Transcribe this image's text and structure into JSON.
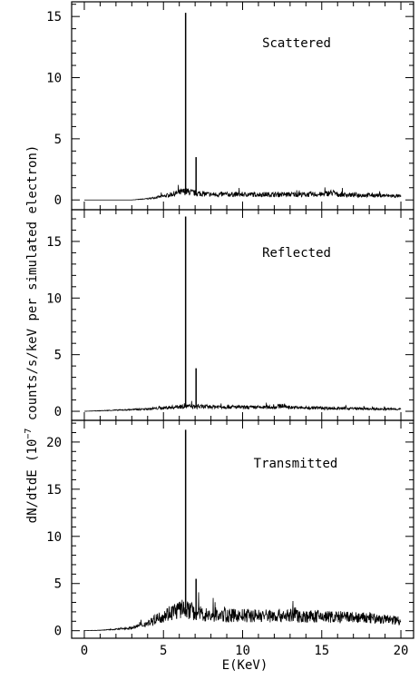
{
  "chart_data": {
    "type": "line",
    "xlabel": "E(KeV)",
    "ylabel_main": "dN/dtdE (10",
    "ylabel_exp": "−7",
    "ylabel_rest": " counts/s/keV per simulated electron)",
    "xlim": [
      -0.8,
      20.8
    ],
    "xticks": [
      0,
      5,
      10,
      15,
      20
    ],
    "panels": [
      {
        "label": "Scattered",
        "ylim": [
          -0.8,
          16.2
        ],
        "yticks": [
          0,
          5,
          10,
          15
        ],
        "series": [
          {
            "x": [
              0,
              1,
              2,
              3,
              3.5,
              4,
              4.5,
              5,
              5.5,
              6,
              6.4,
              6.6,
              7,
              7.5,
              8,
              9,
              10,
              11,
              12,
              13,
              14,
              15,
              15.7,
              16,
              17,
              18,
              19,
              20
            ],
            "values": [
              0,
              0,
              0,
              0,
              0.05,
              0.1,
              0.2,
              0.3,
              0.45,
              0.6,
              0.7,
              0.65,
              0.55,
              0.5,
              0.45,
              0.45,
              0.45,
              0.45,
              0.45,
              0.45,
              0.45,
              0.45,
              0.6,
              0.45,
              0.4,
              0.4,
              0.35,
              0.3
            ]
          }
        ],
        "lines": [
          {
            "x": 6.4,
            "value": 15.3
          },
          {
            "x": 7.06,
            "value": 3.5
          }
        ]
      },
      {
        "label": "Reflected",
        "ylim": [
          -0.8,
          17.8
        ],
        "yticks": [
          0,
          5,
          10,
          15
        ],
        "series": [
          {
            "x": [
              0,
              1,
              2,
              3,
              4,
              5,
              6,
              6.4,
              7,
              8,
              9,
              10,
              11,
              12,
              12.5,
              13,
              14,
              15,
              16,
              17,
              18,
              19,
              20
            ],
            "values": [
              0,
              0.05,
              0.1,
              0.15,
              0.2,
              0.3,
              0.4,
              0.45,
              0.4,
              0.4,
              0.4,
              0.35,
              0.35,
              0.35,
              0.5,
              0.35,
              0.3,
              0.3,
              0.25,
              0.25,
              0.2,
              0.2,
              0.2
            ]
          }
        ],
        "lines": [
          {
            "x": 6.4,
            "value": 17.2
          },
          {
            "x": 7.06,
            "value": 3.8
          }
        ]
      },
      {
        "label": "Transmitted",
        "ylim": [
          -0.8,
          22.3
        ],
        "yticks": [
          0,
          5,
          10,
          15,
          20
        ],
        "series": [
          {
            "x": [
              0,
              1,
              2,
              3,
              3.5,
              4,
              4.5,
              5,
              5.5,
              6,
              6.4,
              6.6,
              7,
              8,
              9,
              10,
              11,
              12,
              13,
              14,
              15,
              16,
              17,
              18,
              19,
              20
            ],
            "values": [
              0,
              0.05,
              0.15,
              0.3,
              0.5,
              0.8,
              1.2,
              1.6,
              2.0,
              2.2,
              2.4,
              2.2,
              1.9,
              1.6,
              1.6,
              1.6,
              1.6,
              1.6,
              1.6,
              1.5,
              1.5,
              1.45,
              1.4,
              1.3,
              1.2,
              1.1
            ]
          }
        ],
        "lines": [
          {
            "x": 6.4,
            "value": 21.3
          },
          {
            "x": 7.06,
            "value": 5.5
          }
        ]
      }
    ]
  }
}
